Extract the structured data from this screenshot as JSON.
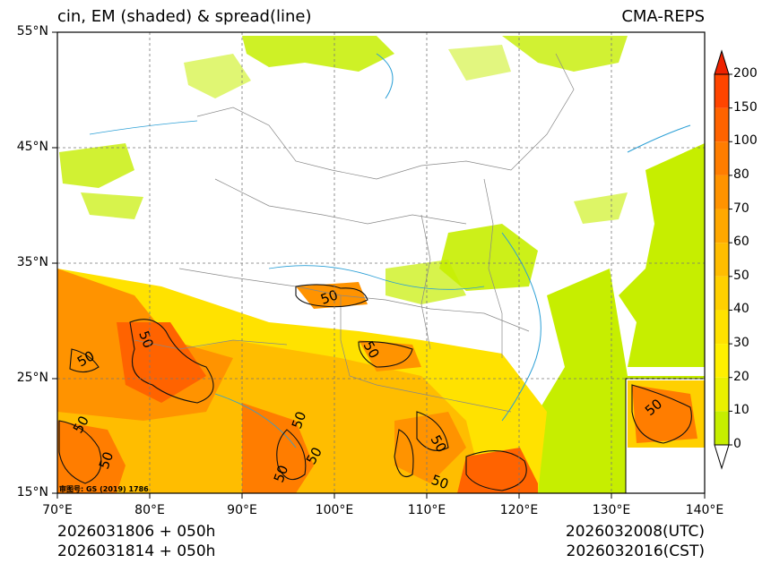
{
  "title_left": "cin, EM (shaded) & spread(line)",
  "title_right": "CMA-REPS",
  "lat_labels": [
    "55°N",
    "45°N",
    "35°N",
    "25°N",
    "15°N"
  ],
  "lon_labels": [
    "70°E",
    "80°E",
    "90°E",
    "100°E",
    "110°E",
    "120°E",
    "130°E",
    "140°E"
  ],
  "colorbar": {
    "levels": [
      "0",
      "10",
      "20",
      "30",
      "40",
      "50",
      "60",
      "70",
      "80",
      "100",
      "150",
      "200"
    ],
    "colors": [
      "#c6ee00",
      "#eaf000",
      "#fff000",
      "#ffe200",
      "#ffd000",
      "#ffbd00",
      "#ffa800",
      "#ff9300",
      "#ff7d00",
      "#ff6300",
      "#ff4500",
      "#ff2a00"
    ],
    "under_color": "#ffffff",
    "over_color": "#ee2200"
  },
  "contour_labels": [
    "50",
    "50",
    "50",
    "50",
    "50",
    "50",
    "50",
    "50",
    "50",
    "50",
    "50",
    "50"
  ],
  "credit": "审图号: GS (2019) 1786",
  "bottom": {
    "init_utc": "2026031806  +  050h",
    "init_cst": "2026031814  +  050h",
    "valid_utc": "2026032008(UTC)",
    "valid_cst": "2026032016(CST)"
  }
}
